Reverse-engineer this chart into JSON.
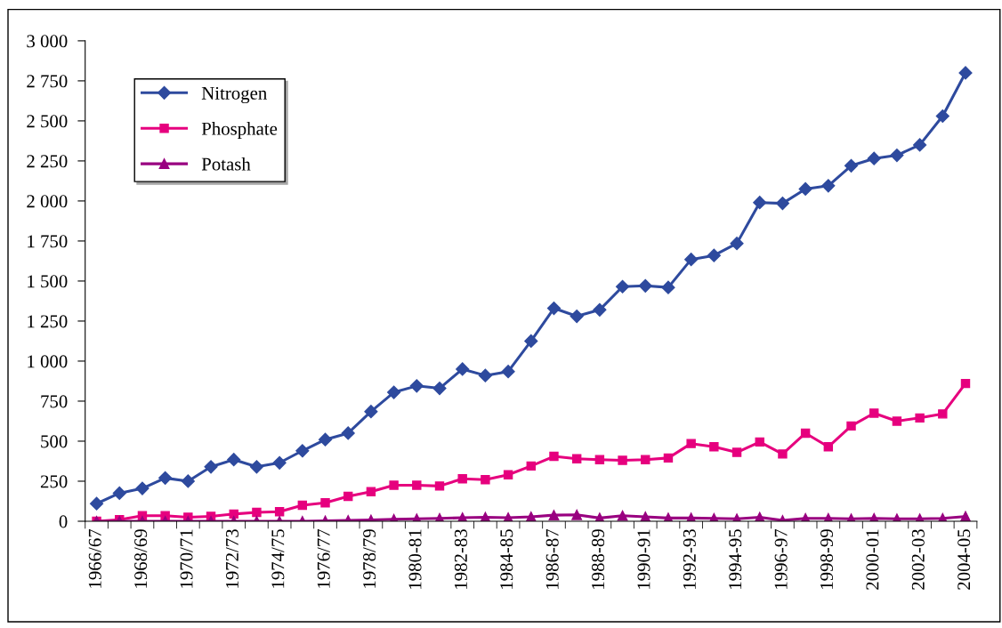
{
  "chart_data": {
    "type": "line",
    "categories": [
      "1966/67",
      null,
      "1968/69",
      null,
      "1970/71",
      null,
      "1972/73",
      null,
      "1974/75",
      null,
      "1976/77",
      null,
      "1978/79",
      null,
      "1980-81",
      null,
      "1982-83",
      null,
      "1984-85",
      null,
      "1986-87",
      null,
      "1988-89",
      null,
      "1990-91",
      null,
      "1992-93",
      null,
      "1994-95",
      null,
      "1996-97",
      null,
      "1998-99",
      null,
      "2000-01",
      null,
      "2002-03",
      null,
      "2004-05"
    ],
    "series": [
      {
        "name": "Nitrogen",
        "color": "#2e4a9e",
        "marker": "diamond",
        "values": [
          110,
          175,
          205,
          270,
          250,
          340,
          385,
          340,
          365,
          440,
          510,
          550,
          685,
          805,
          845,
          830,
          950,
          910,
          935,
          1125,
          1330,
          1280,
          1320,
          1465,
          1470,
          1460,
          1635,
          1660,
          1735,
          1990,
          1985,
          2075,
          2095,
          2220,
          2265,
          2285,
          2350,
          2530,
          2800
        ]
      },
      {
        "name": "Phosphate",
        "color": "#e6007e",
        "marker": "square",
        "values": [
          0,
          10,
          35,
          35,
          25,
          30,
          45,
          55,
          60,
          100,
          115,
          155,
          185,
          225,
          225,
          220,
          265,
          260,
          290,
          345,
          405,
          390,
          385,
          380,
          385,
          395,
          485,
          465,
          430,
          495,
          420,
          550,
          465,
          595,
          675,
          625,
          645,
          670,
          860
        ]
      },
      {
        "name": "Potash",
        "color": "#990080",
        "marker": "triangle",
        "values": [
          0,
          0,
          0,
          0,
          0,
          0,
          0,
          0,
          0,
          0,
          2,
          5,
          8,
          12,
          15,
          18,
          22,
          25,
          22,
          28,
          38,
          40,
          20,
          35,
          28,
          20,
          20,
          18,
          15,
          25,
          5,
          18,
          18,
          15,
          18,
          15,
          15,
          18,
          30
        ]
      }
    ],
    "ylim": [
      0,
      3000
    ],
    "yticks": [
      {
        "value": 0,
        "label": "0"
      },
      {
        "value": 250,
        "label": "250"
      },
      {
        "value": 500,
        "label": "500"
      },
      {
        "value": 750,
        "label": "750"
      },
      {
        "value": 1000,
        "label": "1 000"
      },
      {
        "value": 1250,
        "label": "1 250"
      },
      {
        "value": 1500,
        "label": "1 500"
      },
      {
        "value": 1750,
        "label": "1 750"
      },
      {
        "value": 2000,
        "label": "2 000"
      },
      {
        "value": 2250,
        "label": "2 250"
      },
      {
        "value": 2500,
        "label": "2 500"
      },
      {
        "value": 2750,
        "label": "2 750"
      },
      {
        "value": 3000,
        "label": "3 000"
      }
    ],
    "grid": false,
    "legend": "top left",
    "line_style": "solid"
  }
}
